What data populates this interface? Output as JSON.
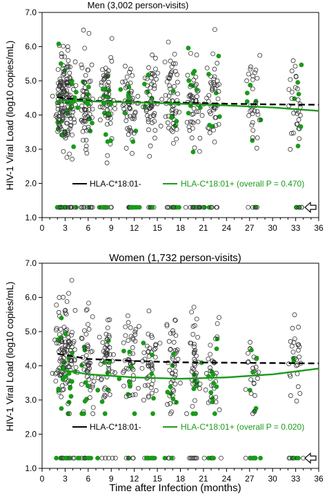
{
  "chart_data": [
    {
      "type": "scatter",
      "title": "Men (3,002 person-visits)",
      "xlabel": "",
      "ylabel": "HIV-1 Viral Load (log10 copies/mL)",
      "xlim": [
        0,
        36
      ],
      "ylim": [
        1.0,
        7.0
      ],
      "x_ticks": [
        0,
        3,
        6,
        9,
        12,
        15,
        18,
        21,
        24,
        27,
        30,
        33,
        36
      ],
      "x_tick_labels": [
        "0",
        "3",
        "6",
        "9",
        "12",
        "15",
        "18",
        "21",
        "24",
        "27",
        "30",
        "33",
        "36"
      ],
      "y_ticks": [
        1.0,
        2.0,
        3.0,
        4.0,
        5.0,
        6.0,
        7.0
      ],
      "y_tick_labels": [
        "1.0",
        "2.0",
        "3.0",
        "4.0",
        "5.0",
        "6.0",
        "7.0"
      ],
      "grid": false,
      "legend_position": "bottom",
      "legend": [
        {
          "label": "HLA-C*18:01-",
          "color": "#000000"
        },
        {
          "label": "HLA-C*18:01+ (overall P = 0.470)",
          "color": "#1a9a1a"
        }
      ],
      "visit_months": [
        2.5,
        3.5,
        5.8,
        8.5,
        11.5,
        14.2,
        17,
        19.8,
        22.2,
        27.5,
        33
      ],
      "undetectable_value": 1.3,
      "undetectable_marker": "arrow-left",
      "series": [
        {
          "name": "HLA-C*18:01-",
          "marker": "open-circle",
          "color": "#000000",
          "trend_x": [
            2,
            6,
            12,
            18,
            24,
            30,
            36
          ],
          "trend_y": [
            4.52,
            4.42,
            4.38,
            4.36,
            4.33,
            4.31,
            4.3
          ],
          "trend_style": "dashed"
        },
        {
          "name": "HLA-C*18:01+",
          "marker": "filled-circle",
          "color": "#1a9a1a",
          "trend_x": [
            2,
            6,
            12,
            18,
            24,
            30,
            36
          ],
          "trend_y": [
            4.42,
            4.4,
            4.37,
            4.33,
            4.28,
            4.22,
            4.12
          ],
          "trend_style": "solid"
        }
      ]
    },
    {
      "type": "scatter",
      "title": "Women (1,732 person-visits)",
      "xlabel": "Time after Infection (months)",
      "ylabel": "HIV-1 Viral Load (log10 copies/mL)",
      "xlim": [
        0,
        36
      ],
      "ylim": [
        1.0,
        7.0
      ],
      "x_ticks": [
        0,
        3,
        6,
        9,
        12,
        15,
        18,
        21,
        24,
        27,
        30,
        33,
        36
      ],
      "x_tick_labels": [
        "0",
        "3",
        "6",
        "9",
        "12",
        "15",
        "18",
        "21",
        "24",
        "27",
        "30",
        "33",
        "36"
      ],
      "y_ticks": [
        1.0,
        2.0,
        3.0,
        4.0,
        5.0,
        6.0,
        7.0
      ],
      "y_tick_labels": [
        "1.0",
        "2.0",
        "3.0",
        "4.0",
        "5.0",
        "6.0",
        "7.0"
      ],
      "grid": false,
      "legend_position": "bottom",
      "legend": [
        {
          "label": "HLA-C*18:01-",
          "color": "#000000"
        },
        {
          "label": "HLA-C*18:01+ (overall P = 0.020)",
          "color": "#1a9a1a"
        }
      ],
      "visit_months": [
        2.5,
        3.5,
        5.8,
        8.5,
        11.5,
        14.2,
        17,
        19.8,
        22.2,
        27.5,
        33
      ],
      "undetectable_value": 1.3,
      "undetectable_marker": "arrow-left",
      "series": [
        {
          "name": "HLA-C*18:01-",
          "marker": "open-circle",
          "color": "#000000",
          "trend_x": [
            2,
            6,
            12,
            18,
            24,
            30,
            36
          ],
          "trend_y": [
            4.35,
            4.2,
            4.14,
            4.1,
            4.09,
            4.08,
            4.07
          ],
          "trend_style": "dashed"
        },
        {
          "name": "HLA-C*18:01+",
          "marker": "filled-circle",
          "color": "#1a9a1a",
          "trend_x": [
            2,
            6,
            12,
            18,
            24,
            30,
            36
          ],
          "trend_y": [
            3.9,
            3.75,
            3.66,
            3.62,
            3.66,
            3.75,
            3.92
          ],
          "trend_style": "solid"
        }
      ]
    }
  ]
}
